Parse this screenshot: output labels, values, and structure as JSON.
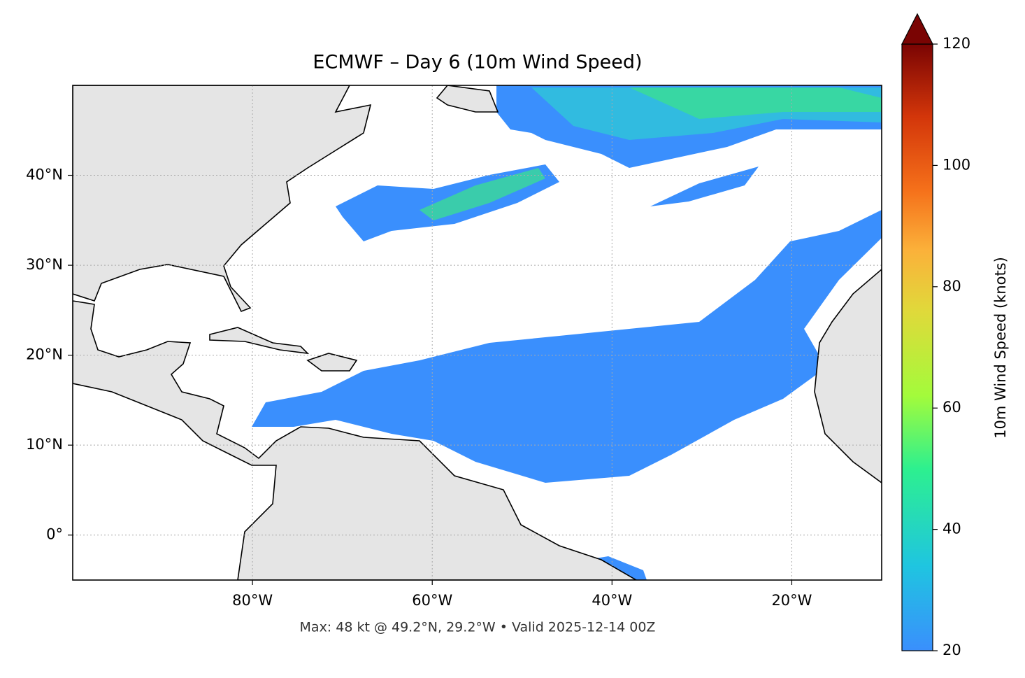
{
  "map": {
    "title": "ECMWF – Day 6 (10m Wind Speed)",
    "footer": "Max: 48 kt @ 49.2°N, 29.2°W • Valid 2025-12-14 00Z",
    "xlim": [
      -100,
      -10
    ],
    "ylim": [
      -5,
      50
    ],
    "xticks": [
      {
        "value": -80,
        "label": "80°W"
      },
      {
        "value": -60,
        "label": "60°W"
      },
      {
        "value": -40,
        "label": "40°W"
      },
      {
        "value": -20,
        "label": "20°W"
      }
    ],
    "yticks": [
      {
        "value": 0,
        "label": "0°"
      },
      {
        "value": 10,
        "label": "10°N"
      },
      {
        "value": 20,
        "label": "20°N"
      },
      {
        "value": 30,
        "label": "30°N"
      },
      {
        "value": 40,
        "label": "40°N"
      }
    ],
    "grid": true,
    "colorbar": {
      "label": "10m Wind Speed (knots)",
      "lim": [
        20,
        120
      ],
      "ticks": [
        20,
        40,
        60,
        80,
        100,
        120
      ]
    }
  }
}
